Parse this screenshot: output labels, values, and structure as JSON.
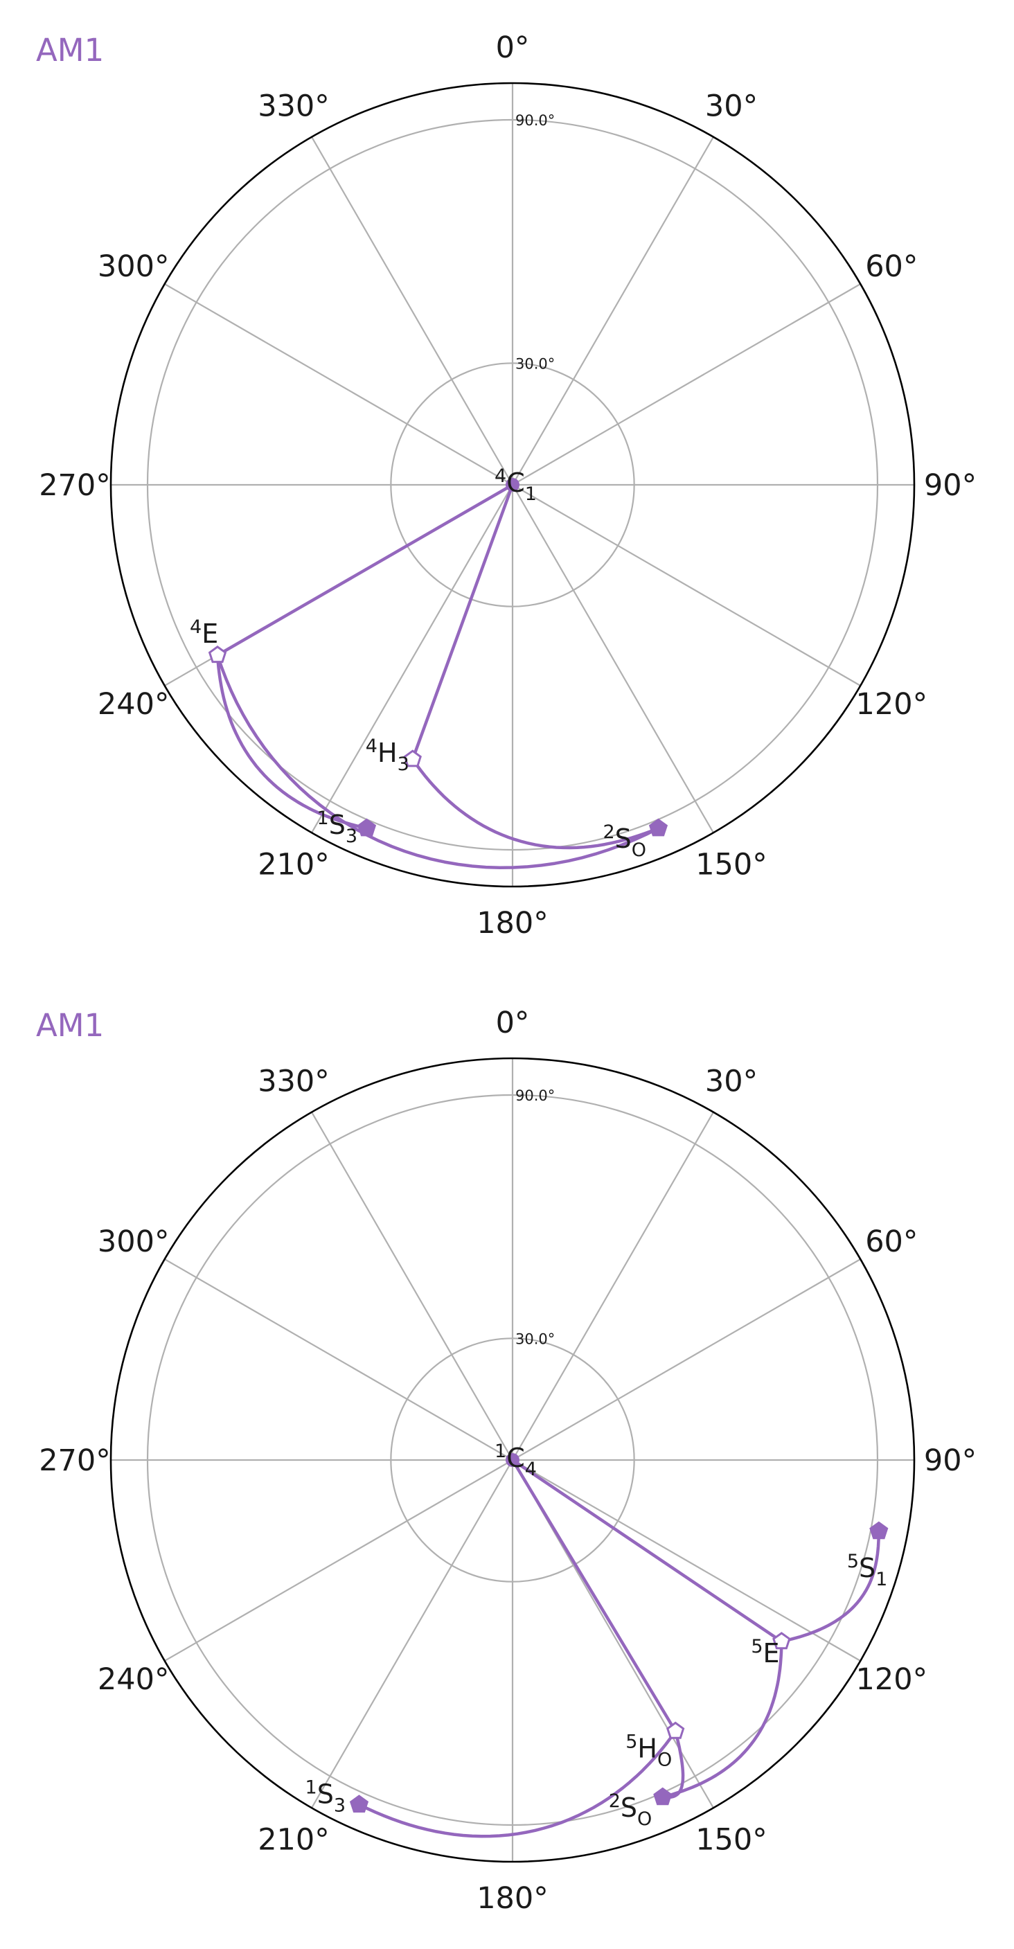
{
  "colors": {
    "series": "#9467bd",
    "grid": "#b0b0b0",
    "outer": "#000000",
    "text": "#1a1a1a"
  },
  "chart_data": [
    {
      "type": "polar-line",
      "title": "AM1",
      "theta_ticks": [
        "0°",
        "30°",
        "60°",
        "90°",
        "120°",
        "150°",
        "180°",
        "210°",
        "240°",
        "270°",
        "300°",
        "330°"
      ],
      "r_ticks": [
        "30.0°",
        "90.0°"
      ],
      "r_tick_values": [
        30,
        90
      ],
      "rlim": [
        0,
        90
      ],
      "grid": true,
      "theta_zero": "top",
      "theta_direction": "clockwise",
      "points": [
        {
          "id": "p-4C1",
          "sup": "4",
          "base": "C",
          "sub": "1",
          "phi": 0,
          "theta": 0,
          "marker": "center"
        },
        {
          "id": "p-4E",
          "sup": "4",
          "base": "E",
          "sub": "",
          "phi": 240,
          "theta": 84,
          "marker": "open"
        },
        {
          "id": "p-4H3",
          "sup": "4",
          "base": "H",
          "sub": "3",
          "phi": 200,
          "theta": 72,
          "marker": "open"
        },
        {
          "id": "p-1S3",
          "sup": "1",
          "base": "S",
          "sub": "3",
          "phi": 203,
          "theta": 92,
          "marker": "filled"
        },
        {
          "id": "p-2SO",
          "sup": "2",
          "base": "S",
          "sub": "O",
          "phi": 157,
          "theta": 92,
          "marker": "filled"
        }
      ],
      "trajectories": [
        [
          "p-4C1",
          "p-4E"
        ],
        [
          "p-4C1",
          "p-4H3"
        ],
        [
          "p-4E",
          "p-1S3"
        ],
        [
          "p-4E",
          "p-2SO"
        ],
        [
          "p-4H3",
          "p-2SO"
        ]
      ]
    },
    {
      "type": "polar-line",
      "title": "AM1",
      "theta_ticks": [
        "0°",
        "30°",
        "60°",
        "90°",
        "120°",
        "150°",
        "180°",
        "210°",
        "240°",
        "270°",
        "300°",
        "330°"
      ],
      "r_ticks": [
        "30.0°",
        "90.0°"
      ],
      "r_tick_values": [
        30,
        90
      ],
      "rlim": [
        0,
        90
      ],
      "grid": true,
      "theta_zero": "top",
      "theta_direction": "clockwise",
      "points": [
        {
          "id": "q-1C4",
          "sup": "1",
          "base": "C",
          "sub": "4",
          "phi": 0,
          "theta": 0,
          "marker": "center"
        },
        {
          "id": "q-5S1",
          "sup": "5",
          "base": "S",
          "sub": "1",
          "phi": 101,
          "theta": 92,
          "marker": "filled"
        },
        {
          "id": "q-5E",
          "sup": "5",
          "base": "E",
          "sub": "",
          "phi": 124,
          "theta": 80,
          "marker": "open"
        },
        {
          "id": "q-5HO",
          "sup": "5",
          "base": "H",
          "sub": "O",
          "phi": 149,
          "theta": 78,
          "marker": "open"
        },
        {
          "id": "q-2SO",
          "sup": "2",
          "base": "S",
          "sub": "O",
          "phi": 156,
          "theta": 91,
          "marker": "filled"
        },
        {
          "id": "q-1S3",
          "sup": "1",
          "base": "S",
          "sub": "3",
          "phi": 204,
          "theta": 93,
          "marker": "filled"
        }
      ],
      "trajectories": [
        [
          "q-1C4",
          "q-5E"
        ],
        [
          "q-1C4",
          "q-5HO"
        ],
        [
          "q-5E",
          "q-5S1"
        ],
        [
          "q-5E",
          "q-2SO"
        ],
        [
          "q-5HO",
          "q-2SO"
        ],
        [
          "q-5HO",
          "q-1S3"
        ]
      ]
    }
  ]
}
